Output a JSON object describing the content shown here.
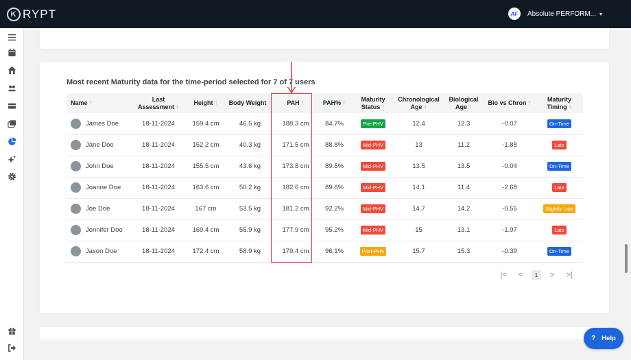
{
  "header": {
    "logo_text": "RYPT",
    "logo_mark": "K",
    "account_avatar": "AF",
    "account_name": "Absolute PERFORM...",
    "caret": "▾"
  },
  "sidebar": {
    "items": [
      {
        "name": "menu-icon",
        "active": false
      },
      {
        "name": "calendar-icon",
        "active": false
      },
      {
        "name": "home-icon",
        "active": false
      },
      {
        "name": "users-icon",
        "active": false
      },
      {
        "name": "card-icon",
        "active": false
      },
      {
        "name": "gallery-icon",
        "active": false
      },
      {
        "name": "pie-chart-icon",
        "active": true
      },
      {
        "name": "sparkle-icon",
        "active": false
      },
      {
        "name": "gear-icon",
        "active": false
      },
      {
        "name": "gift-icon",
        "active": false
      },
      {
        "name": "logout-icon",
        "active": false
      }
    ]
  },
  "section": {
    "title": "Most recent Maturity data for the time-period selected for 7 of 7 users"
  },
  "table": {
    "sort_arrow": "↑",
    "columns": [
      {
        "l1": "Name",
        "l2": ""
      },
      {
        "l1": "Last",
        "l2": "Assessment"
      },
      {
        "l1": "Height",
        "l2": ""
      },
      {
        "l1": "Body Weight",
        "l2": ""
      },
      {
        "l1": "PAH",
        "l2": ""
      },
      {
        "l1": "PAH%",
        "l2": ""
      },
      {
        "l1": "Maturity",
        "l2": "Status"
      },
      {
        "l1": "Chronological",
        "l2": "Age"
      },
      {
        "l1": "Biological",
        "l2": "Age"
      },
      {
        "l1": "Bio vs Chron",
        "l2": ""
      },
      {
        "l1": "Maturity",
        "l2": "Timing"
      }
    ],
    "rows": [
      {
        "name": "James Doe",
        "date": "18-11-2024",
        "height": "159.4 cm",
        "weight": "46.5 kg",
        "pah": "188.3 cm",
        "pah_pct": "84.7%",
        "status": "Pre-PHV",
        "status_color": "#18a34a",
        "chron": "12.4",
        "bio": "12.3",
        "diff": "-0.07",
        "timing": "On-Time",
        "timing_color": "#1e66de"
      },
      {
        "name": "Jane Doe",
        "date": "18-11-2024",
        "height": "152.2 cm",
        "weight": "40.3 kg",
        "pah": "171.5 cm",
        "pah_pct": "88.8%",
        "status": "Mid-PHV",
        "status_color": "#f04a3a",
        "chron": "13",
        "bio": "11.2",
        "diff": "-1.88",
        "timing": "Late",
        "timing_color": "#f04a3a"
      },
      {
        "name": "John Doe",
        "date": "18-11-2024",
        "height": "155.5 cm",
        "weight": "43.6 kg",
        "pah": "173.8 cm",
        "pah_pct": "89.5%",
        "status": "Mid-PHV",
        "status_color": "#f04a3a",
        "chron": "13.5",
        "bio": "13.5",
        "diff": "-0.04",
        "timing": "On-Time",
        "timing_color": "#1e66de"
      },
      {
        "name": "Joanne Doe",
        "date": "18-11-2024",
        "height": "163.6 cm",
        "weight": "50.2 kg",
        "pah": "182.6 cm",
        "pah_pct": "89.6%",
        "status": "Mid-PHV",
        "status_color": "#f04a3a",
        "chron": "14.1",
        "bio": "11.4",
        "diff": "-2.68",
        "timing": "Late",
        "timing_color": "#f04a3a"
      },
      {
        "name": "Joe Doe",
        "date": "18-11-2024",
        "height": "167 cm",
        "weight": "53.5 kg",
        "pah": "181.2 cm",
        "pah_pct": "92.2%",
        "status": "Mid-PHV",
        "status_color": "#f04a3a",
        "chron": "14.7",
        "bio": "14.2",
        "diff": "-0.55",
        "timing": "Slightly Late",
        "timing_color": "#f5a70f"
      },
      {
        "name": "Jennifer Doe",
        "date": "18-11-2024",
        "height": "169.4 cm",
        "weight": "55.9 kg",
        "pah": "177.9 cm",
        "pah_pct": "95.2%",
        "status": "Mid-PHV",
        "status_color": "#f04a3a",
        "chron": "15",
        "bio": "13.1",
        "diff": "-1.97",
        "timing": "Late",
        "timing_color": "#f04a3a"
      },
      {
        "name": "Jason Doe",
        "date": "18-11-2024",
        "height": "172.4 cm",
        "weight": "58.9 kg",
        "pah": "179.4 cm",
        "pah_pct": "96.1%",
        "status": "Post-PHV",
        "status_color": "#f5a70f",
        "chron": "15.7",
        "bio": "15.3",
        "diff": "-0.39",
        "timing": "On-Time",
        "timing_color": "#1e66de"
      }
    ]
  },
  "pagination": {
    "first": "|<",
    "prev": "<",
    "current": "1",
    "next": ">",
    "last": ">|"
  },
  "help": {
    "icon": "?",
    "label": "Help"
  }
}
